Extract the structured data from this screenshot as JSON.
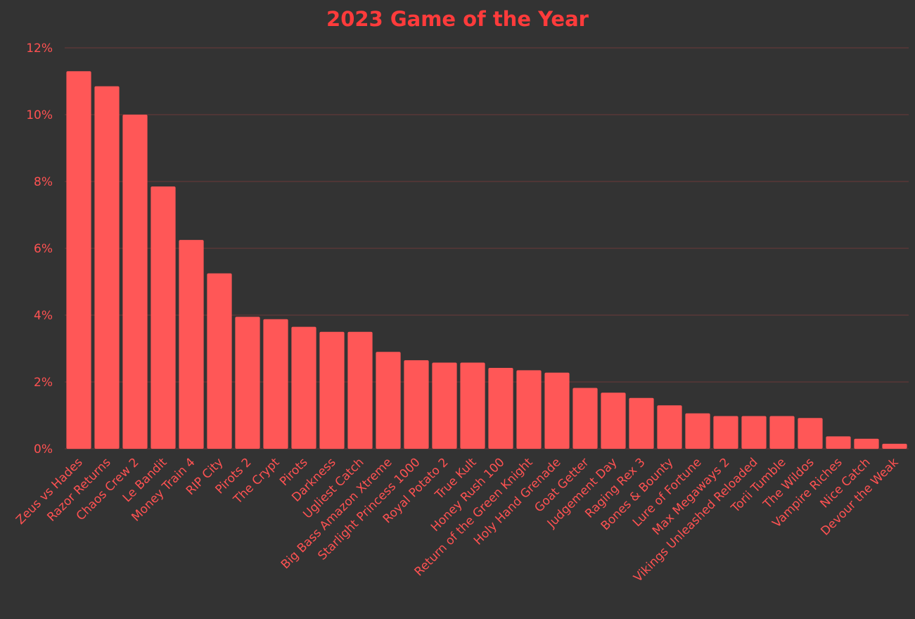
{
  "colors": {
    "background": "#333333",
    "bar": "#ff5757",
    "text": "#ff4d4d",
    "title": "#ff3b3b",
    "grid": "#6b3a3a"
  },
  "chart_data": {
    "type": "bar",
    "title": "2023 Game of the Year",
    "xlabel": "",
    "ylabel": "",
    "ylim": [
      0,
      12
    ],
    "yticks": [
      "0%",
      "2%",
      "4%",
      "6%",
      "8%",
      "10%",
      "12%"
    ],
    "grid": true,
    "legend": "none",
    "categories": [
      "Zeus vs Hades",
      "Razor Returns",
      "Chaos Crew 2",
      "Le Bandit",
      "Money Train 4",
      "RIP City",
      "Pirots 2",
      "The Crypt",
      "Pirots",
      "Darkness",
      "Ugliest Catch",
      "Big Bass Amazon Xtreme",
      "Starlight Princess 1000",
      "Royal Potato 2",
      "True Kult",
      "Honey Rush 100",
      "Return of the Green Knight",
      "Holy Hand Grenade",
      "Goat Getter",
      "Judgement Day",
      "Raging Rex 3",
      "Bones & Bounty",
      "Lure of Fortune",
      "Max Megaways 2",
      "Vikings Unleashed Reloaded",
      "Torii Tumble",
      "The Wildos",
      "Vampire Riches",
      "Nice Catch",
      "Devour the Weak"
    ],
    "values": [
      11.3,
      10.85,
      10.0,
      7.85,
      6.25,
      5.25,
      3.95,
      3.88,
      3.65,
      3.5,
      3.5,
      2.9,
      2.65,
      2.58,
      2.58,
      2.42,
      2.35,
      2.28,
      1.82,
      1.68,
      1.52,
      1.3,
      1.06,
      0.98,
      0.98,
      0.98,
      0.92,
      0.37,
      0.3,
      0.15
    ]
  }
}
